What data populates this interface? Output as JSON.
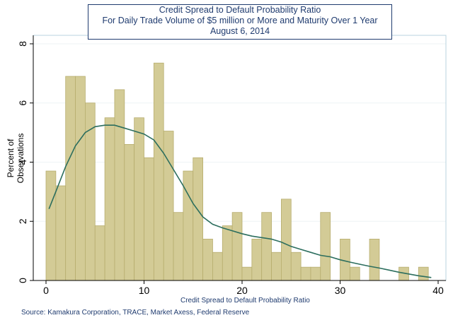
{
  "chart_data": {
    "type": "bar",
    "title_lines": [
      "Credit Spread to Default Probability Ratio",
      "For Daily Trade Volume of $5 million or More and Maturity Over 1 Year",
      "August 6, 2014"
    ],
    "xlabel": "Credit Spread to Default Probability Ratio",
    "ylabel": "Percent of Observations",
    "xlim": [
      0,
      40
    ],
    "ylim": [
      0,
      8
    ],
    "xticks": [
      0,
      10,
      20,
      30,
      40
    ],
    "yticks": [
      0,
      2,
      4,
      6,
      8
    ],
    "bin_width": 1,
    "bins": [
      {
        "x0": 0,
        "value": 3.7
      },
      {
        "x0": 1,
        "value": 3.2
      },
      {
        "x0": 2,
        "value": 6.9
      },
      {
        "x0": 3,
        "value": 6.9
      },
      {
        "x0": 4,
        "value": 6.0
      },
      {
        "x0": 5,
        "value": 1.85
      },
      {
        "x0": 6,
        "value": 5.5
      },
      {
        "x0": 7,
        "value": 6.45
      },
      {
        "x0": 8,
        "value": 4.6
      },
      {
        "x0": 9,
        "value": 5.5
      },
      {
        "x0": 10,
        "value": 4.15
      },
      {
        "x0": 11,
        "value": 7.35
      },
      {
        "x0": 12,
        "value": 5.05
      },
      {
        "x0": 13,
        "value": 2.3
      },
      {
        "x0": 14,
        "value": 3.7
      },
      {
        "x0": 15,
        "value": 4.15
      },
      {
        "x0": 16,
        "value": 1.4
      },
      {
        "x0": 17,
        "value": 0.95
      },
      {
        "x0": 18,
        "value": 1.85
      },
      {
        "x0": 19,
        "value": 2.3
      },
      {
        "x0": 20,
        "value": 0.45
      },
      {
        "x0": 21,
        "value": 1.4
      },
      {
        "x0": 22,
        "value": 2.3
      },
      {
        "x0": 23,
        "value": 0.95
      },
      {
        "x0": 24,
        "value": 2.75
      },
      {
        "x0": 25,
        "value": 0.95
      },
      {
        "x0": 26,
        "value": 0.45
      },
      {
        "x0": 27,
        "value": 0.45
      },
      {
        "x0": 28,
        "value": 2.3
      },
      {
        "x0": 29,
        "value": 0
      },
      {
        "x0": 30,
        "value": 1.4
      },
      {
        "x0": 31,
        "value": 0.45
      },
      {
        "x0": 32,
        "value": 0
      },
      {
        "x0": 33,
        "value": 1.4
      },
      {
        "x0": 34,
        "value": 0
      },
      {
        "x0": 35,
        "value": 0
      },
      {
        "x0": 36,
        "value": 0.45
      },
      {
        "x0": 37,
        "value": 0
      },
      {
        "x0": 38,
        "value": 0.45
      }
    ],
    "density_series": {
      "name": "kernel density",
      "x": [
        0.3,
        1,
        2,
        3,
        4,
        5,
        6,
        7,
        8,
        9,
        10,
        11,
        12,
        13,
        14,
        15,
        16,
        17,
        18,
        19,
        20,
        21,
        22,
        23,
        24,
        25,
        26,
        27,
        28,
        29,
        30,
        31,
        32,
        33,
        34,
        35,
        36,
        37,
        38,
        39.3
      ],
      "y": [
        2.42,
        3.0,
        3.85,
        4.55,
        5.0,
        5.2,
        5.25,
        5.25,
        5.15,
        5.05,
        4.95,
        4.75,
        4.3,
        3.75,
        3.2,
        2.6,
        2.15,
        1.9,
        1.78,
        1.68,
        1.58,
        1.5,
        1.45,
        1.4,
        1.3,
        1.15,
        1.05,
        0.95,
        0.85,
        0.8,
        0.7,
        0.62,
        0.55,
        0.48,
        0.42,
        0.35,
        0.28,
        0.22,
        0.16,
        0.1
      ]
    },
    "colors": {
      "bar_fill": "#d3cb96",
      "bar_stroke": "#b7ad6e",
      "density_line": "#2c6e5e",
      "text": "#1f3b6f",
      "plot_border": "#b9d3df"
    }
  },
  "footer": {
    "source": "Source: Kamakura Corporation, TRACE, Market Axess, Federal Reserve"
  }
}
